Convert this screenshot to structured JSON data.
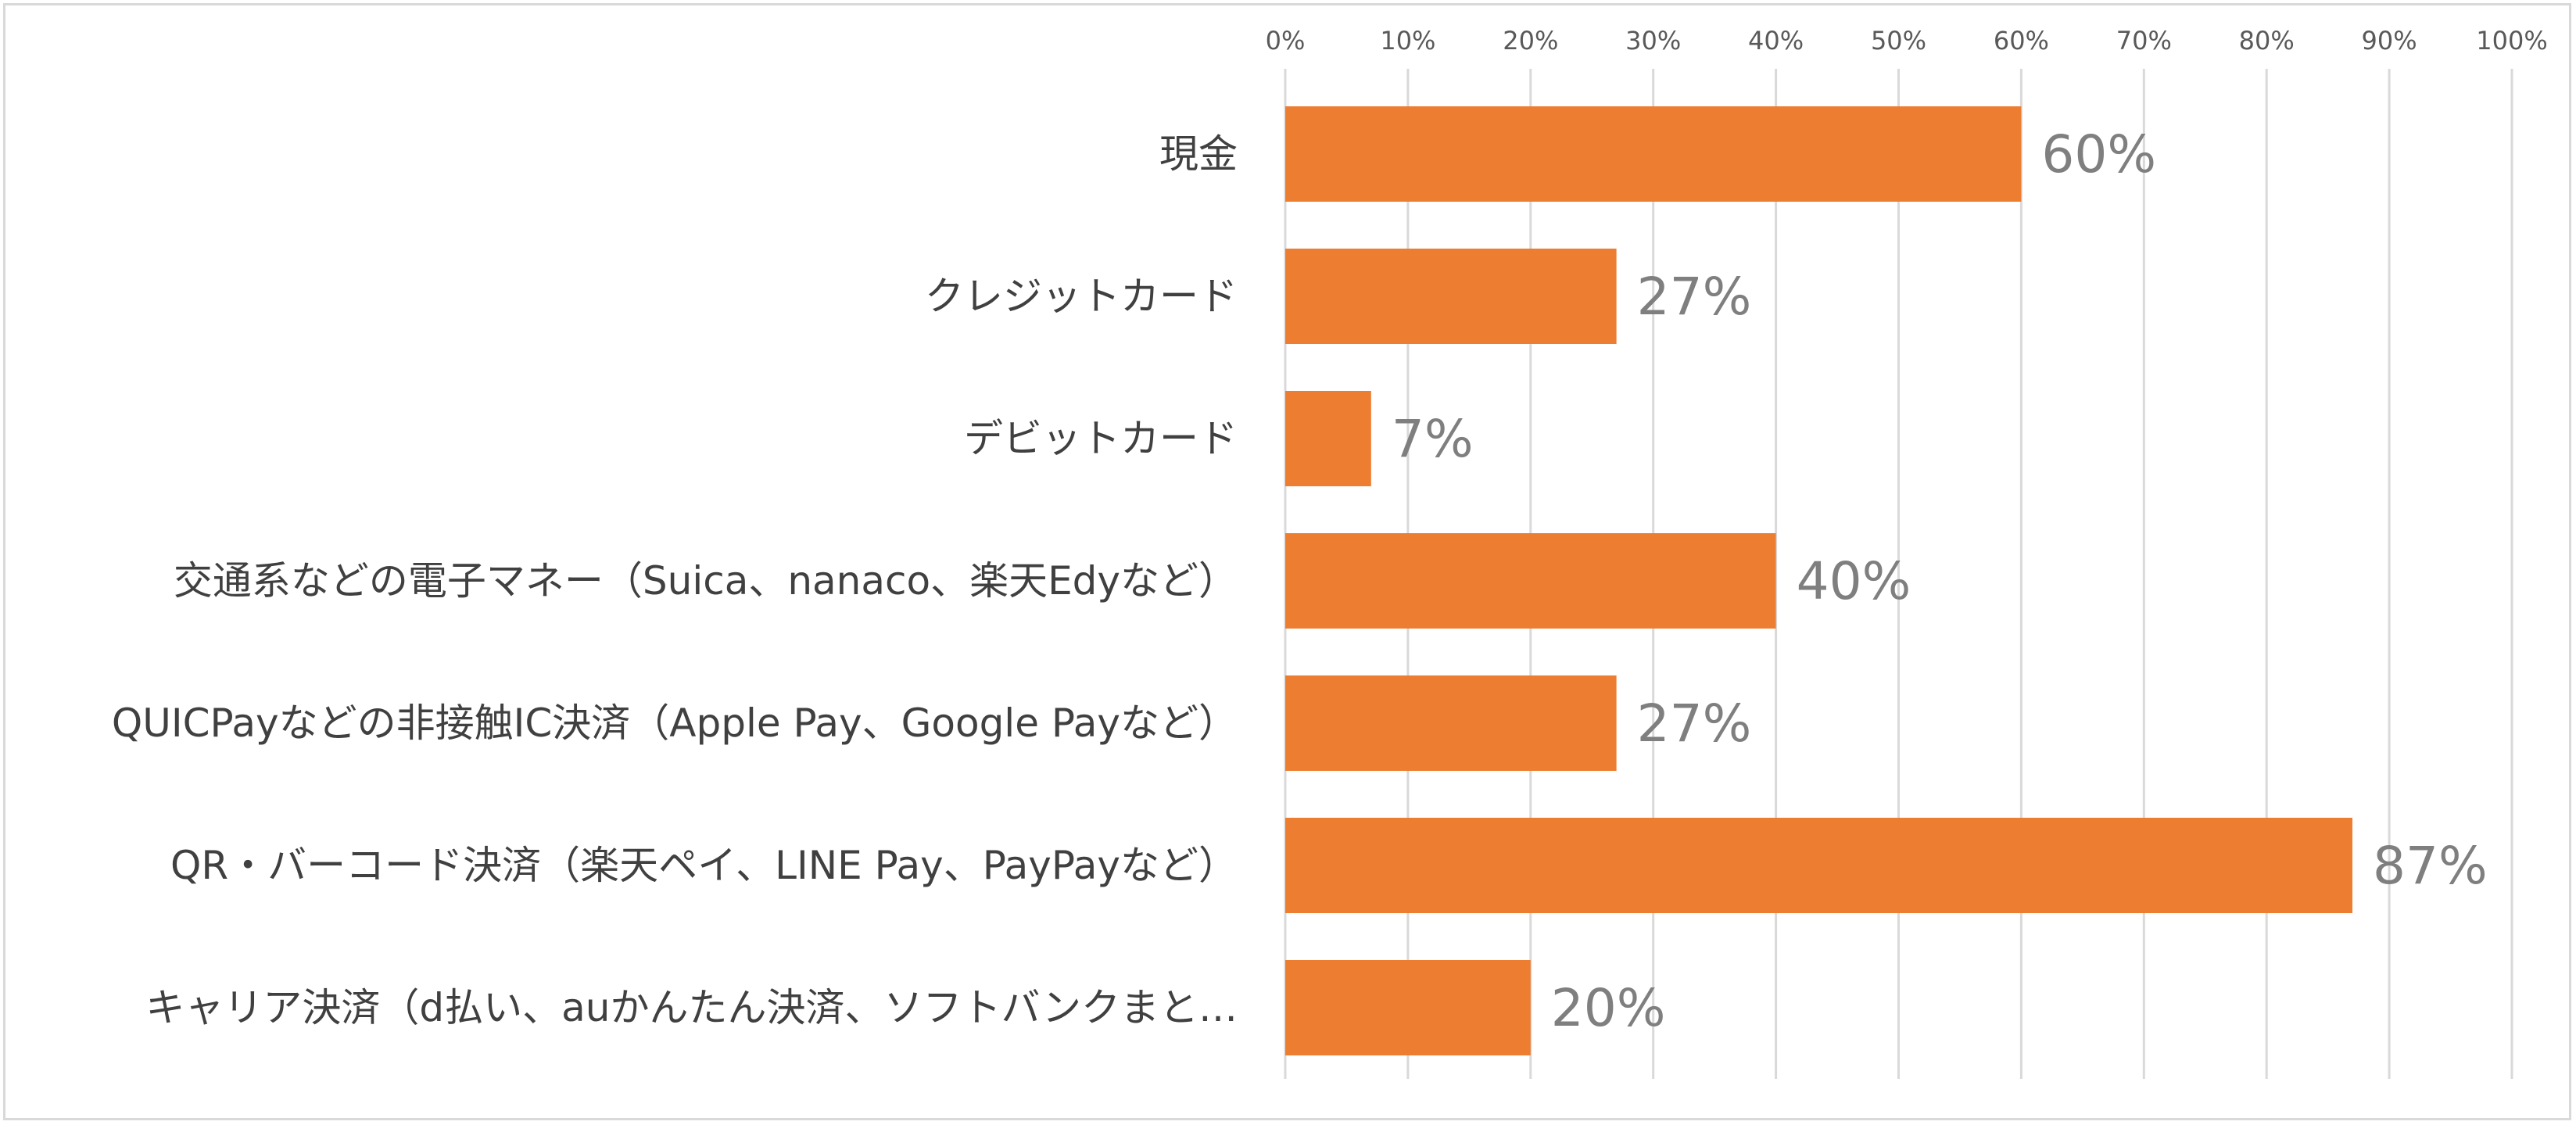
{
  "chart_data": {
    "type": "bar",
    "orientation": "horizontal",
    "categories": [
      "現金",
      "クレジットカード",
      "デビットカード",
      "交通系などの電子マネー（Suica、nanaco、楽天Edyなど）",
      "QUICPayなどの非接触IC決済（Apple Pay、Google Payなど）",
      "QR・バーコード決済（楽天ペイ、LINE Pay、PayPayなど）",
      "キャリア決済（d払い、auかんたん決済、ソフトバンクまと…"
    ],
    "values": [
      60,
      27,
      7,
      40,
      27,
      87,
      20
    ],
    "value_labels": [
      "60%",
      "27%",
      "7%",
      "40%",
      "27%",
      "87%",
      "20%"
    ],
    "xlim": [
      0,
      100
    ],
    "x_ticks": [
      "0%",
      "10%",
      "20%",
      "30%",
      "40%",
      "50%",
      "60%",
      "70%",
      "80%",
      "90%",
      "100%"
    ],
    "x_axis_position": "top",
    "grid": true,
    "legend": "none",
    "bar_color": "#ED7D31",
    "grid_color": "#D9D9D9"
  }
}
